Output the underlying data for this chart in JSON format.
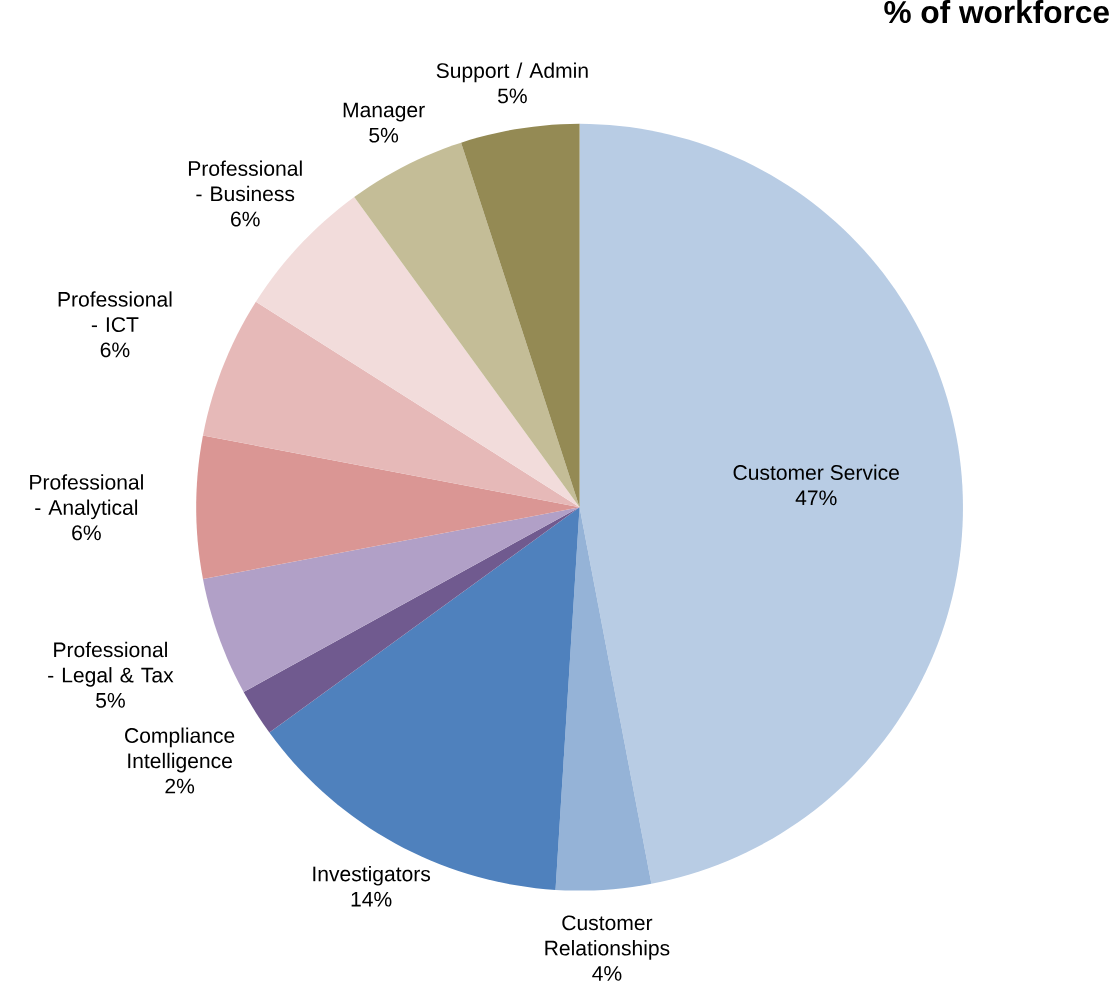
{
  "chart_data": {
    "type": "pie",
    "title": "% of workforce",
    "categories": [
      "Customer Service",
      "Customer Relationships",
      "Investigators",
      "Compliance Intelligence",
      "Professional - Legal & Tax",
      "Professional - Analytical",
      "Professional - ICT",
      "Professional - Business",
      "Manager",
      "Support / Admin"
    ],
    "values": [
      47,
      4,
      14,
      2,
      5,
      6,
      6,
      6,
      5,
      5
    ],
    "value_labels": [
      "47%",
      "4%",
      "14%",
      "2%",
      "5%",
      "6%",
      "6%",
      "6%",
      "5%",
      "5%"
    ],
    "colors": [
      "#b8cce4",
      "#95b3d7",
      "#4f81bd",
      "#705a8f",
      "#b1a0c7",
      "#da9694",
      "#e6b9b8",
      "#f2dcdb",
      "#c4bd97",
      "#948a54"
    ]
  }
}
